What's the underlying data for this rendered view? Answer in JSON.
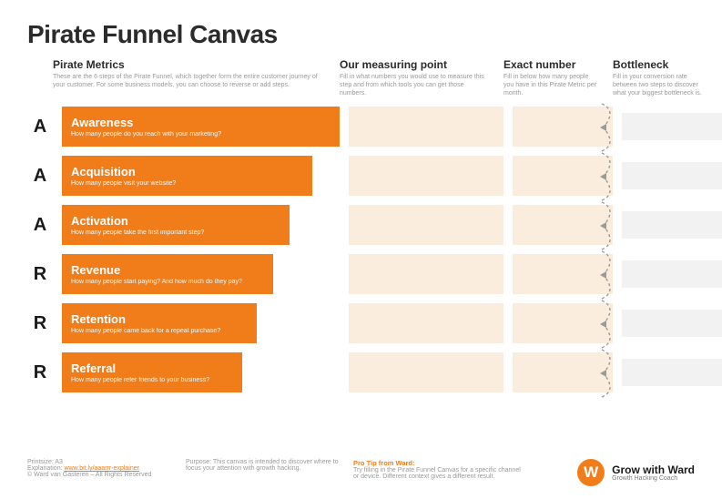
{
  "title": "Pirate Funnel Canvas",
  "brand_color": "#f07d1a",
  "cell_bg": "#fbeddd",
  "bottleneck_bg": "#f2f2f2",
  "columns": [
    {
      "title": "Pirate Metrics",
      "desc": "These are the 6 steps of the Pirate Funnel, which together form the entire customer journey of your customer. For some business models, you can choose to reverse or add steps."
    },
    {
      "title": "Our measuring point",
      "desc": "Fill in what numbers you would use to measure this step and from which tools you can get those numbers."
    },
    {
      "title": "Exact number",
      "desc": "Fill in below how many people you have in this Pirate Metric per month."
    },
    {
      "title": "Bottleneck",
      "desc": "Fill in your conversion rate between two steps to discover what your biggest bottleneck is."
    }
  ],
  "steps": [
    {
      "letter": "A",
      "name": "Awareness",
      "question": "How many people do you reach with your marketing?",
      "bar_pct": 100
    },
    {
      "letter": "A",
      "name": "Acquisition",
      "question": "How many people visit your website?",
      "bar_pct": 90
    },
    {
      "letter": "A",
      "name": "Activation",
      "question": "How many people take the first important step?",
      "bar_pct": 82
    },
    {
      "letter": "R",
      "name": "Revenue",
      "question": "How many people start paying? And how much do they pay?",
      "bar_pct": 76
    },
    {
      "letter": "R",
      "name": "Retention",
      "question": "How many people came back for a repeat purchase?",
      "bar_pct": 70
    },
    {
      "letter": "R",
      "name": "Referral",
      "question": "How many people refer friends to your business?",
      "bar_pct": 65
    }
  ],
  "footer": {
    "printsize_label": "Printsize:",
    "printsize": "A3",
    "explanation_label": "Explanation:",
    "explanation_link": "www.bit.ly/aaarrr-explainer",
    "copyright": "© Ward van Gasteren – All Rights Reserved",
    "purpose_label": "Purpose:",
    "purpose": "This canvas is intended to discover where to focus your attention with growth hacking.",
    "protip_title": "Pro Tip from Ward:",
    "protip": "Try filling in the Pirate Funnel Canvas for a specific channel or device. Different context gives a different result."
  },
  "brand": {
    "logo_letter": "W",
    "name": "Grow with Ward",
    "tagline": "Growth Hacking Coach"
  }
}
